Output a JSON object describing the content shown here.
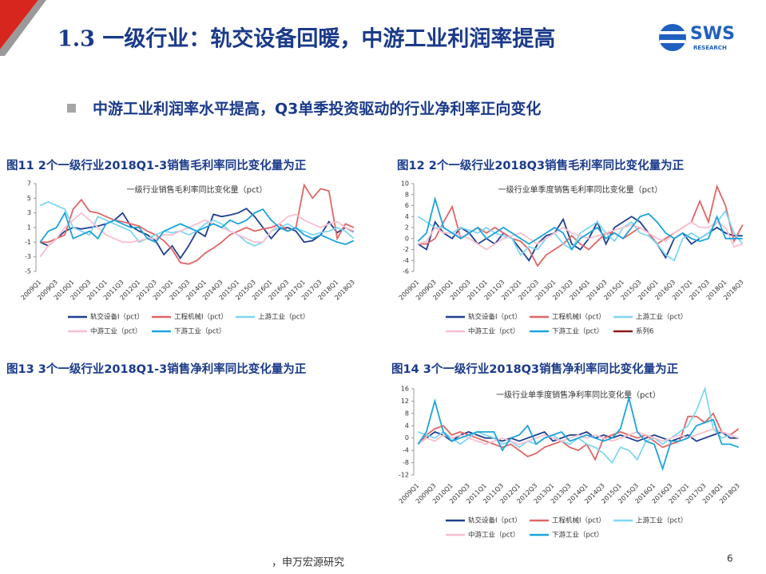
{
  "header": {
    "title": "1.3 一级行业：轨交设备回暖，中游工业利润率提高",
    "logo": "SWS",
    "logo_sub": "RESEARCH"
  },
  "bullet": "中游工业利润率水平提高，Q3单季投资驱动的行业净利率正向变化",
  "empty_figure": {
    "title": "图13 3个一级行业2018Q1-3销售净利率同比变化量为正"
  },
  "source": "，申万宏源研究",
  "page_number": 6,
  "chart_data": [
    {
      "type": "line",
      "title": "图11 2个一级行业2018Q1-3销售毛利率同比变化量为正",
      "subtitle": "一级行业销售毛利率同比变化量（pct）",
      "categories": [
        "2009Q1",
        null,
        "2009Q3",
        null,
        "2010Q1",
        null,
        "2010Q3",
        null,
        "2011Q1",
        null,
        "2011Q3",
        null,
        "2012Q1",
        null,
        "2012Q3",
        null,
        "2013Q1",
        null,
        "2013Q3",
        null,
        "2014Q1",
        null,
        "2014Q3",
        null,
        "2015Q1",
        null,
        "2015Q3",
        null,
        "2016Q1",
        null,
        "2016Q3",
        null,
        "2017Q1",
        null,
        "2017Q3",
        null,
        "2018Q1",
        null,
        "2018Q3"
      ],
      "ylim": [
        -5,
        7
      ],
      "yticks": [
        -5,
        -3,
        -1,
        1,
        3,
        5,
        7
      ],
      "grid": false,
      "series": [
        {
          "name": "轨交设备I（pct）",
          "color": "#1f3f8f",
          "values": [
            -1,
            -1.5,
            -0.5,
            0.5,
            1,
            0.8,
            1,
            1.2,
            1.5,
            2,
            3,
            1.2,
            0.5,
            0,
            -0.8,
            -2.7,
            -1.5,
            -3.2,
            -1.5,
            0.5,
            -0.2,
            2.8,
            2.5,
            2.7,
            3,
            3.6,
            2.5,
            1,
            -0.5,
            0.8,
            1,
            0.5,
            -1,
            -0.8,
            0,
            1.8,
            0.3,
            1,
            0.4
          ]
        },
        {
          "name": "工程机械I（pct）",
          "color": "#e06666",
          "values": [
            -1,
            -1,
            -0.5,
            0,
            3.5,
            4.8,
            3.2,
            3,
            2.5,
            2,
            1.8,
            1.5,
            1.2,
            0.5,
            0,
            -0.8,
            -2,
            -3.8,
            -4,
            -3.5,
            -2.5,
            -1.8,
            -1,
            0,
            0.5,
            1,
            0.5,
            0.8,
            1,
            1.5,
            0.5,
            1,
            6.8,
            5,
            6.3,
            6,
            -0.5,
            1.5,
            1
          ]
        },
        {
          "name": "上游工业（pct）",
          "color": "#7fd6f2",
          "values": [
            4,
            4.5,
            4,
            3.5,
            1,
            0.5,
            0,
            2.5,
            2,
            1.5,
            1,
            0.5,
            -1,
            -0.5,
            0,
            0.5,
            0.3,
            0.5,
            0,
            0.5,
            1.5,
            2,
            1.5,
            0.5,
            0,
            -1,
            -1.5,
            -1,
            0.5,
            1,
            1.5,
            0.8,
            0.5,
            0,
            0.3,
            0.5,
            1,
            0.5,
            -0.5
          ]
        },
        {
          "name": "中游工业（pct）",
          "color": "#f6c0cf",
          "values": [
            -3,
            -1.5,
            -0.5,
            1,
            2,
            3,
            2,
            1,
            0,
            -0.5,
            -1,
            -1,
            -0.8,
            -0.5,
            -0.5,
            0,
            0,
            0.5,
            1,
            1.5,
            2,
            1.5,
            1,
            0.5,
            0,
            -0.5,
            -1,
            -1,
            0.5,
            1.5,
            2.5,
            2.8,
            2,
            1.5,
            1,
            1.5,
            1.8,
            1,
            0.5
          ]
        },
        {
          "name": "下游工业（pct）",
          "color": "#1ca4dc",
          "values": [
            -1,
            0.5,
            1,
            3,
            -0.5,
            0,
            0.5,
            -0.5,
            1.5,
            2,
            1.5,
            1,
            1,
            -0.5,
            -1,
            0.5,
            1,
            1.5,
            1,
            0.5,
            1,
            1.5,
            1,
            2,
            1.5,
            2,
            3,
            3.5,
            2,
            1,
            0.5,
            1,
            0,
            -0.5,
            0,
            -0.5,
            -1,
            -1.3,
            -0.8
          ]
        }
      ]
    },
    {
      "type": "line",
      "title": "图12 2个一级行业2018Q3销售毛利率同比变化量为正",
      "subtitle": "一级行业单季度销售毛利率同比变化量（pct）",
      "categories": [
        "2009Q1",
        null,
        "2009Q3",
        null,
        "2010Q1",
        null,
        "2010Q3",
        null,
        "2011Q1",
        null,
        "2011Q3",
        null,
        "2012Q1",
        null,
        "2012Q3",
        null,
        "2013Q1",
        null,
        "2013Q3",
        null,
        "2014Q1",
        null,
        "2014Q3",
        null,
        "2015Q1",
        null,
        "2015Q3",
        null,
        "2016Q1",
        null,
        "2016Q3",
        null,
        "2017Q1",
        null,
        "2017Q3",
        null,
        "2018Q1",
        null,
        "2018Q3"
      ],
      "ylim": [
        -6,
        10
      ],
      "yticks": [
        -6,
        -4,
        -2,
        0,
        2,
        4,
        6,
        8,
        10
      ],
      "grid": false,
      "series": [
        {
          "name": "轨交设备I（pct）",
          "color": "#1f3f8f",
          "values": [
            -1,
            -2,
            3,
            1,
            0,
            2,
            1,
            -1,
            0,
            -1,
            1,
            0,
            -2,
            -4,
            -1,
            0.5,
            1,
            3.5,
            -1,
            -2,
            0,
            3,
            -1,
            2,
            3,
            4,
            3,
            1,
            -1,
            -3.5,
            0,
            1,
            -1,
            0,
            1,
            2,
            1,
            0.5,
            0.5
          ]
        },
        {
          "name": "工程机械I（pct）",
          "color": "#e06666",
          "values": [
            -1,
            -1,
            0,
            3,
            5.8,
            0,
            1,
            2,
            1,
            2,
            1,
            0,
            -0.5,
            -2,
            -5,
            -3,
            -2,
            -1,
            0.5,
            -1,
            -2,
            -0.5,
            1,
            1,
            0,
            1,
            2,
            1,
            -1,
            0,
            1,
            2,
            3,
            6.8,
            3,
            9.5,
            6,
            -0.5,
            2.5
          ]
        },
        {
          "name": "上游工业（pct）",
          "color": "#7fd6f2",
          "values": [
            4,
            3,
            2,
            2,
            1,
            2,
            1.5,
            1,
            2,
            1,
            0.5,
            0,
            -3,
            -1.5,
            -2,
            0,
            1,
            -1,
            -2,
            1,
            2,
            3,
            1,
            -0.5,
            2,
            3,
            1,
            0.5,
            -1,
            -3,
            -4,
            0,
            1,
            0,
            1,
            3,
            5,
            1,
            -1
          ]
        },
        {
          "name": "中游工业（pct）",
          "color": "#f6c0cf",
          "values": [
            -1,
            -0.5,
            2,
            1,
            1,
            0.5,
            0,
            -1,
            -2,
            -1,
            0,
            0.5,
            1,
            0,
            -1,
            0,
            1,
            2,
            1,
            0.5,
            0,
            0.5,
            1,
            1.5,
            2,
            2.5,
            2,
            1,
            0,
            -0.5,
            1,
            2,
            3,
            2,
            2,
            3,
            2,
            -1.5,
            -1
          ]
        },
        {
          "name": "下游工业（pct）",
          "color": "#1ca4dc",
          "values": [
            -0.5,
            1,
            7.2,
            2,
            1,
            0,
            1,
            2,
            0,
            1,
            2,
            1,
            0,
            -1,
            0,
            1,
            2,
            1,
            -2,
            0,
            1,
            2,
            0,
            1,
            0,
            2,
            4,
            4.5,
            3,
            1,
            0,
            1,
            0,
            -0.5,
            0,
            4,
            0,
            0,
            0
          ]
        },
        {
          "name": "系列6",
          "color": "#8b1a1a",
          "values": [
            null,
            null,
            null,
            null,
            null,
            null,
            null,
            null,
            null,
            null,
            null,
            null,
            null,
            null,
            null,
            null,
            null,
            null,
            null,
            null,
            null,
            null,
            null,
            null,
            null,
            null,
            null,
            null,
            null,
            null,
            null,
            null,
            null,
            null,
            null,
            null,
            null,
            null,
            null
          ]
        }
      ]
    },
    {
      "type": "line",
      "title": "图14 3个一级行业2018Q3销售净利率同比变化量为正",
      "subtitle": "一级行业单季度销售净利率同比变化量（pct）",
      "categories": [
        "2009Q1",
        null,
        "2009Q3",
        null,
        "2010Q1",
        null,
        "2010Q3",
        null,
        "2011Q1",
        null,
        "2011Q3",
        null,
        "2012Q1",
        null,
        "2012Q3",
        null,
        "2013Q1",
        null,
        "2013Q3",
        null,
        "2014Q1",
        null,
        "2014Q3",
        null,
        "2015Q1",
        null,
        "2015Q3",
        null,
        "2016Q1",
        null,
        "2016Q3",
        null,
        "2017Q1",
        null,
        "2017Q3",
        null,
        "2018Q1",
        null,
        "2018Q3"
      ],
      "ylim": [
        -12,
        16
      ],
      "yticks": [
        -12,
        -8,
        -4,
        0,
        4,
        8,
        12,
        16
      ],
      "grid": false,
      "series": [
        {
          "name": "轨交设备I（pct）",
          "color": "#1f3f8f",
          "values": [
            -2,
            0,
            2,
            1,
            -1,
            1,
            2,
            1,
            0,
            0,
            -1,
            0,
            -1,
            0,
            1,
            2,
            -1,
            0,
            1,
            1,
            2,
            0,
            1,
            0,
            1,
            0,
            -1,
            0,
            1,
            0,
            -1,
            0,
            1,
            -1,
            0,
            1,
            2,
            0,
            0
          ]
        },
        {
          "name": "工程机械I（pct）",
          "color": "#e06666",
          "values": [
            -2,
            1,
            3,
            4,
            1,
            2,
            1,
            0,
            -1,
            -2,
            -3,
            -2,
            -4,
            -6,
            -5,
            -3,
            -2,
            -1,
            -3,
            -4,
            -2,
            -7,
            0,
            1,
            2,
            1,
            0,
            1,
            -1,
            -3,
            -2,
            -1,
            7,
            7,
            5,
            8,
            2,
            1,
            3
          ]
        },
        {
          "name": "上游工业（pct）",
          "color": "#7fd6f2",
          "values": [
            2,
            1,
            0,
            2,
            0,
            -2,
            0,
            2,
            1,
            0,
            -2,
            -1,
            -3,
            -1,
            -2,
            0,
            1,
            -1,
            -2,
            0,
            -2,
            -3,
            -5,
            -8,
            -3,
            -4,
            -7,
            -1,
            0,
            -2,
            0,
            2,
            4,
            9,
            16,
            3,
            0,
            1,
            0
          ]
        },
        {
          "name": "中游工业（pct）",
          "color": "#f6c0cf",
          "values": [
            -2,
            0,
            -1,
            1,
            0,
            1,
            0,
            -1,
            -2,
            -1,
            0,
            -1,
            -2,
            -1,
            0,
            1,
            0,
            -1,
            0,
            1,
            0,
            1,
            0,
            -1,
            0,
            1,
            2,
            1,
            0,
            -1,
            0,
            1,
            0,
            1,
            2,
            3,
            2,
            1,
            0
          ]
        },
        {
          "name": "下游工业（pct）",
          "color": "#1ca4dc",
          "values": [
            -2,
            2,
            12,
            2,
            -1,
            0,
            1,
            2,
            2,
            2,
            -4,
            0,
            1,
            4,
            -2,
            0,
            1,
            2,
            -1,
            0,
            1,
            0,
            -1,
            0,
            3,
            13,
            2,
            -1,
            -2,
            -10,
            -1,
            -1,
            0,
            4,
            5,
            6,
            -2,
            -2,
            -3
          ]
        }
      ]
    }
  ]
}
